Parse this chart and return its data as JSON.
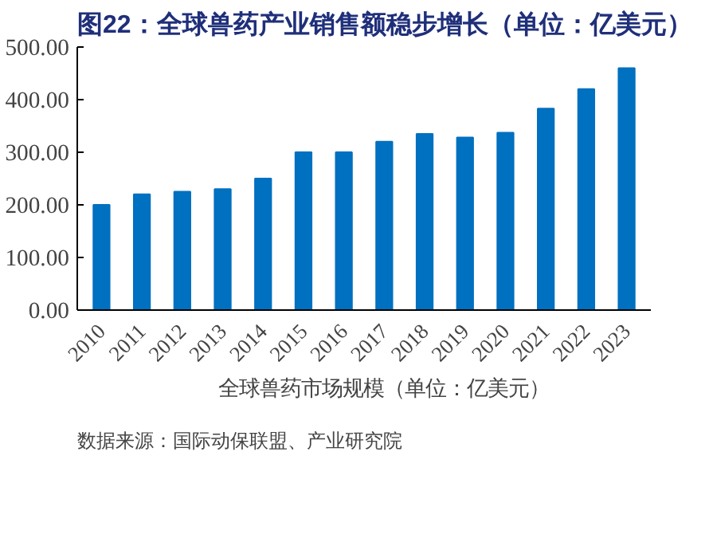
{
  "chart_data": {
    "type": "bar",
    "title": "图22：全球兽药产业销售额稳步增长（单位：亿美元）",
    "categories": [
      "2010",
      "2011",
      "2012",
      "2013",
      "2014",
      "2015",
      "2016",
      "2017",
      "2018",
      "2019",
      "2020",
      "2021",
      "2022",
      "2023"
    ],
    "series": [
      {
        "name": "全球兽药市场规模（单位：亿美元）",
        "color": "#0070c0",
        "values": [
          200,
          220,
          225,
          230,
          250,
          300,
          300,
          320,
          335,
          328,
          337,
          383,
          420,
          460
        ]
      }
    ],
    "ylim": [
      0,
      500
    ],
    "yticks": [
      {
        "value": 0,
        "label": "0.00"
      },
      {
        "value": 100,
        "label": "100.00"
      },
      {
        "value": 200,
        "label": "200.00"
      },
      {
        "value": 300,
        "label": "300.00"
      },
      {
        "value": 400,
        "label": "400.00"
      },
      {
        "value": 500,
        "label": "500.00"
      }
    ],
    "grid": false,
    "legend": "bottom",
    "annotations": [
      "数据来源：国际动保联盟、产业研究院"
    ]
  }
}
